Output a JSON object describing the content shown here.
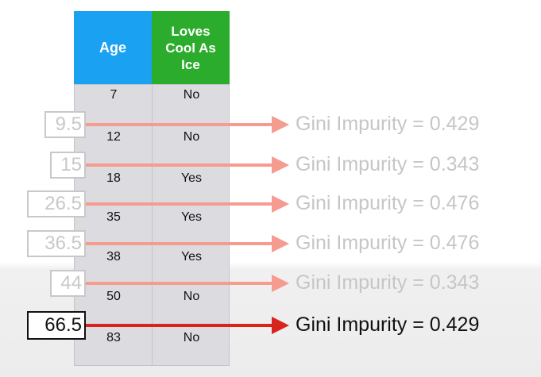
{
  "table": {
    "headers": {
      "age": "Age",
      "loves": "Loves Cool As Ice"
    },
    "rows": [
      {
        "age": "7",
        "loves": "No"
      },
      {
        "age": "12",
        "loves": "No"
      },
      {
        "age": "18",
        "loves": "Yes"
      },
      {
        "age": "35",
        "loves": "Yes"
      },
      {
        "age": "38",
        "loves": "Yes"
      },
      {
        "age": "50",
        "loves": "No"
      },
      {
        "age": "83",
        "loves": "No"
      }
    ]
  },
  "thresholds": [
    {
      "value": "9.5",
      "label": "Gini Impurity = 0.429",
      "active": false
    },
    {
      "value": "15",
      "label": "Gini Impurity = 0.343",
      "active": false
    },
    {
      "value": "26.5",
      "label": "Gini Impurity = 0.476",
      "active": false
    },
    {
      "value": "36.5",
      "label": "Gini Impurity = 0.476",
      "active": false
    },
    {
      "value": "44",
      "label": "Gini Impurity = 0.343",
      "active": false
    },
    {
      "value": "66.5",
      "label": "Gini Impurity = 0.429",
      "active": true
    }
  ],
  "colors": {
    "age_header": "#1aa1f1",
    "loves_header": "#2cac2c",
    "arrow_inactive": "#f59b90",
    "arrow_active": "#d9231d",
    "text_inactive": "#c6c6c6",
    "text_active": "#111111"
  }
}
